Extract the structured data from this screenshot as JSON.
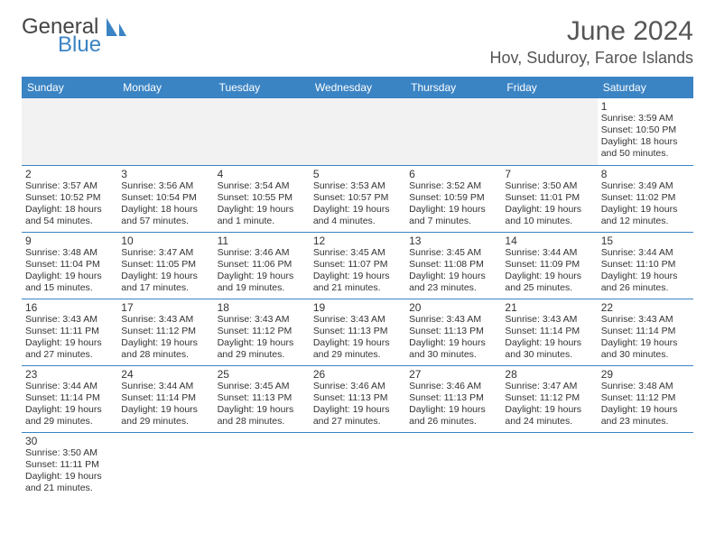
{
  "brand": {
    "line1": "General",
    "line2": "Blue",
    "accent": "#3b84c4"
  },
  "title": {
    "month": "June 2024",
    "location": "Hov, Suduroy, Faroe Islands"
  },
  "columns": [
    "Sunday",
    "Monday",
    "Tuesday",
    "Wednesday",
    "Thursday",
    "Friday",
    "Saturday"
  ],
  "colors": {
    "header_bg": "#3b84c4",
    "header_fg": "#ffffff",
    "border": "#3b84c4",
    "empty_bg": "#f2f2f2"
  },
  "weeks": [
    [
      null,
      null,
      null,
      null,
      null,
      null,
      {
        "d": "1",
        "sr": "3:59 AM",
        "ss": "10:50 PM",
        "dl": "18 hours and 50 minutes."
      }
    ],
    [
      {
        "d": "2",
        "sr": "3:57 AM",
        "ss": "10:52 PM",
        "dl": "18 hours and 54 minutes."
      },
      {
        "d": "3",
        "sr": "3:56 AM",
        "ss": "10:54 PM",
        "dl": "18 hours and 57 minutes."
      },
      {
        "d": "4",
        "sr": "3:54 AM",
        "ss": "10:55 PM",
        "dl": "19 hours and 1 minute."
      },
      {
        "d": "5",
        "sr": "3:53 AM",
        "ss": "10:57 PM",
        "dl": "19 hours and 4 minutes."
      },
      {
        "d": "6",
        "sr": "3:52 AM",
        "ss": "10:59 PM",
        "dl": "19 hours and 7 minutes."
      },
      {
        "d": "7",
        "sr": "3:50 AM",
        "ss": "11:01 PM",
        "dl": "19 hours and 10 minutes."
      },
      {
        "d": "8",
        "sr": "3:49 AM",
        "ss": "11:02 PM",
        "dl": "19 hours and 12 minutes."
      }
    ],
    [
      {
        "d": "9",
        "sr": "3:48 AM",
        "ss": "11:04 PM",
        "dl": "19 hours and 15 minutes."
      },
      {
        "d": "10",
        "sr": "3:47 AM",
        "ss": "11:05 PM",
        "dl": "19 hours and 17 minutes."
      },
      {
        "d": "11",
        "sr": "3:46 AM",
        "ss": "11:06 PM",
        "dl": "19 hours and 19 minutes."
      },
      {
        "d": "12",
        "sr": "3:45 AM",
        "ss": "11:07 PM",
        "dl": "19 hours and 21 minutes."
      },
      {
        "d": "13",
        "sr": "3:45 AM",
        "ss": "11:08 PM",
        "dl": "19 hours and 23 minutes."
      },
      {
        "d": "14",
        "sr": "3:44 AM",
        "ss": "11:09 PM",
        "dl": "19 hours and 25 minutes."
      },
      {
        "d": "15",
        "sr": "3:44 AM",
        "ss": "11:10 PM",
        "dl": "19 hours and 26 minutes."
      }
    ],
    [
      {
        "d": "16",
        "sr": "3:43 AM",
        "ss": "11:11 PM",
        "dl": "19 hours and 27 minutes."
      },
      {
        "d": "17",
        "sr": "3:43 AM",
        "ss": "11:12 PM",
        "dl": "19 hours and 28 minutes."
      },
      {
        "d": "18",
        "sr": "3:43 AM",
        "ss": "11:12 PM",
        "dl": "19 hours and 29 minutes."
      },
      {
        "d": "19",
        "sr": "3:43 AM",
        "ss": "11:13 PM",
        "dl": "19 hours and 29 minutes."
      },
      {
        "d": "20",
        "sr": "3:43 AM",
        "ss": "11:13 PM",
        "dl": "19 hours and 30 minutes."
      },
      {
        "d": "21",
        "sr": "3:43 AM",
        "ss": "11:14 PM",
        "dl": "19 hours and 30 minutes."
      },
      {
        "d": "22",
        "sr": "3:43 AM",
        "ss": "11:14 PM",
        "dl": "19 hours and 30 minutes."
      }
    ],
    [
      {
        "d": "23",
        "sr": "3:44 AM",
        "ss": "11:14 PM",
        "dl": "19 hours and 29 minutes."
      },
      {
        "d": "24",
        "sr": "3:44 AM",
        "ss": "11:14 PM",
        "dl": "19 hours and 29 minutes."
      },
      {
        "d": "25",
        "sr": "3:45 AM",
        "ss": "11:13 PM",
        "dl": "19 hours and 28 minutes."
      },
      {
        "d": "26",
        "sr": "3:46 AM",
        "ss": "11:13 PM",
        "dl": "19 hours and 27 minutes."
      },
      {
        "d": "27",
        "sr": "3:46 AM",
        "ss": "11:13 PM",
        "dl": "19 hours and 26 minutes."
      },
      {
        "d": "28",
        "sr": "3:47 AM",
        "ss": "11:12 PM",
        "dl": "19 hours and 24 minutes."
      },
      {
        "d": "29",
        "sr": "3:48 AM",
        "ss": "11:12 PM",
        "dl": "19 hours and 23 minutes."
      }
    ],
    [
      {
        "d": "30",
        "sr": "3:50 AM",
        "ss": "11:11 PM",
        "dl": "19 hours and 21 minutes."
      },
      "blank",
      "blank",
      "blank",
      "blank",
      "blank",
      "blank"
    ]
  ],
  "labels": {
    "sunrise": "Sunrise:",
    "sunset": "Sunset:",
    "daylight": "Daylight:"
  }
}
